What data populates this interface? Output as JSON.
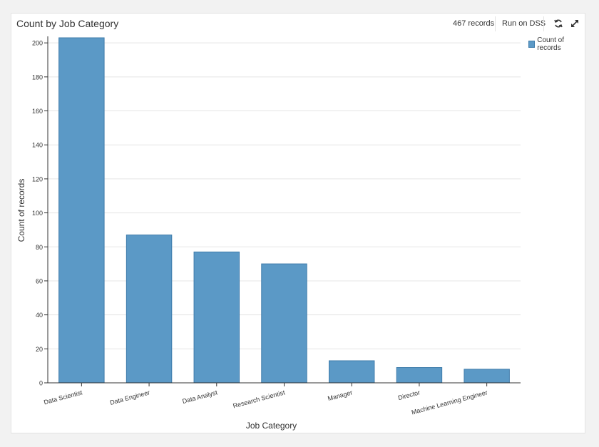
{
  "header": {
    "title": "Count by Job Category",
    "records": "467 records",
    "run_label": "Run on DSS"
  },
  "legend": {
    "label": "Count of records",
    "color": "#5b99c6"
  },
  "chart_data": {
    "type": "bar",
    "title": "Count by Job Category",
    "xlabel": "Job Category",
    "ylabel": "Count of records",
    "categories": [
      "Data Scientist",
      "Data Engineer",
      "Data Analyst",
      "Research Scientist",
      "Manager",
      "Director",
      "Machine Learning Engineer"
    ],
    "series": [
      {
        "name": "Count of records",
        "values": [
          203,
          87,
          77,
          70,
          13,
          9,
          8
        ]
      }
    ],
    "yticks": [
      0,
      20,
      40,
      60,
      80,
      100,
      120,
      140,
      160,
      180,
      200
    ],
    "ylim": [
      0,
      203
    ],
    "grid": true,
    "legend_position": "top-right",
    "bar_color": "#5b99c6",
    "bar_stroke": "#3f7cab"
  }
}
